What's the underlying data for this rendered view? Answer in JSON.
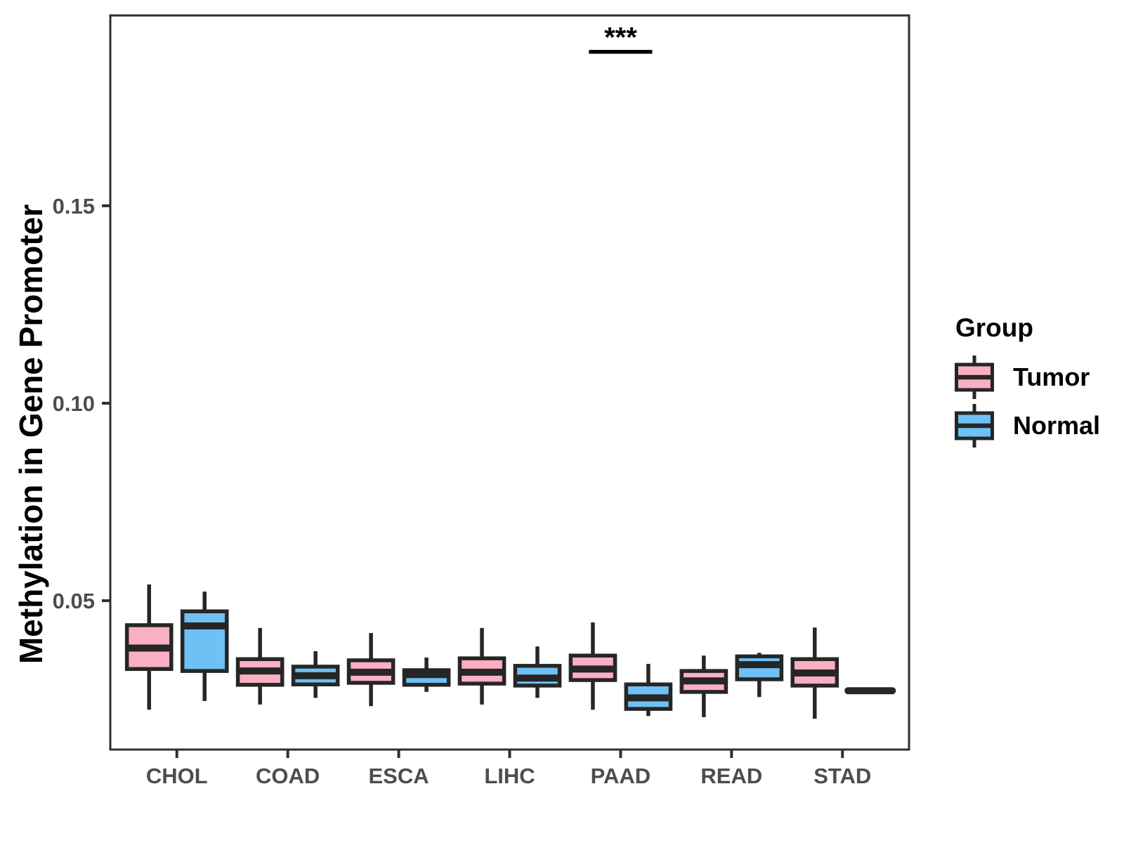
{
  "chart_data": {
    "type": "boxplot",
    "title": "",
    "xlabel": "",
    "ylabel": "Methylation in Gene Promoter",
    "categories": [
      "CHOL",
      "COAD",
      "ESCA",
      "LIHC",
      "PAAD",
      "READ",
      "STAD"
    ],
    "y_ticks": [
      {
        "label": "0.05",
        "value": 0.05
      },
      {
        "label": "0.10",
        "value": 0.1
      },
      {
        "label": "0.15",
        "value": 0.15
      }
    ],
    "ylim": [
      0.0123,
      0.1982
    ],
    "grid": false,
    "legend_position": "right",
    "series": [
      {
        "name": "Tumor",
        "fill": "#FAAFC3",
        "boxes": [
          {
            "category": "CHOL",
            "whisker_low": 0.0224,
            "q1": 0.0327,
            "median": 0.038,
            "q3": 0.0438,
            "whisker_high": 0.0541
          },
          {
            "category": "COAD",
            "whisker_low": 0.0237,
            "q1": 0.0287,
            "median": 0.0322,
            "q3": 0.0352,
            "whisker_high": 0.0431
          },
          {
            "category": "ESCA",
            "whisker_low": 0.0233,
            "q1": 0.0292,
            "median": 0.0319,
            "q3": 0.0349,
            "whisker_high": 0.0418
          },
          {
            "category": "LIHC",
            "whisker_low": 0.0237,
            "q1": 0.029,
            "median": 0.0319,
            "q3": 0.0354,
            "whisker_high": 0.0431
          },
          {
            "category": "PAAD",
            "whisker_low": 0.0224,
            "q1": 0.0299,
            "median": 0.0327,
            "q3": 0.0361,
            "whisker_high": 0.0445
          },
          {
            "category": "READ",
            "whisker_low": 0.0205,
            "q1": 0.0269,
            "median": 0.0297,
            "q3": 0.0322,
            "whisker_high": 0.0361
          },
          {
            "category": "STAD",
            "whisker_low": 0.0201,
            "q1": 0.0285,
            "median": 0.0317,
            "q3": 0.0352,
            "whisker_high": 0.0432
          }
        ]
      },
      {
        "name": "Normal",
        "fill": "#6EC0F5",
        "boxes": [
          {
            "category": "CHOL",
            "whisker_low": 0.0246,
            "q1": 0.0322,
            "median": 0.0436,
            "q3": 0.0473,
            "whisker_high": 0.0523
          },
          {
            "category": "COAD",
            "whisker_low": 0.0254,
            "q1": 0.0288,
            "median": 0.031,
            "q3": 0.0333,
            "whisker_high": 0.0372
          },
          {
            "category": "ESCA",
            "whisker_low": 0.0269,
            "q1": 0.0287,
            "median": 0.0313,
            "q3": 0.0324,
            "whisker_high": 0.0356
          },
          {
            "category": "LIHC",
            "whisker_low": 0.0254,
            "q1": 0.0285,
            "median": 0.0304,
            "q3": 0.0335,
            "whisker_high": 0.0384
          },
          {
            "category": "PAAD",
            "whisker_low": 0.0208,
            "q1": 0.0226,
            "median": 0.0254,
            "q3": 0.0288,
            "whisker_high": 0.034
          },
          {
            "category": "READ",
            "whisker_low": 0.0256,
            "q1": 0.0301,
            "median": 0.0338,
            "q3": 0.0359,
            "whisker_high": 0.0368
          },
          {
            "category": "STAD",
            "whisker_low": 0.0272,
            "q1": 0.0272,
            "median": 0.0272,
            "q3": 0.0272,
            "whisker_high": 0.0272
          }
        ]
      }
    ],
    "annotations": [
      {
        "label": "***",
        "category": "PAAD",
        "y": 0.189
      }
    ],
    "colors": {
      "box_border": "#262626",
      "panel_border": "#2F2F2F",
      "axis_text": "#4D4D4D",
      "annotation": "#000000"
    }
  },
  "legend": {
    "title": "Group",
    "items": [
      {
        "label": "Tumor",
        "color": "#FAAFC3"
      },
      {
        "label": "Normal",
        "color": "#6EC0F5"
      }
    ]
  }
}
